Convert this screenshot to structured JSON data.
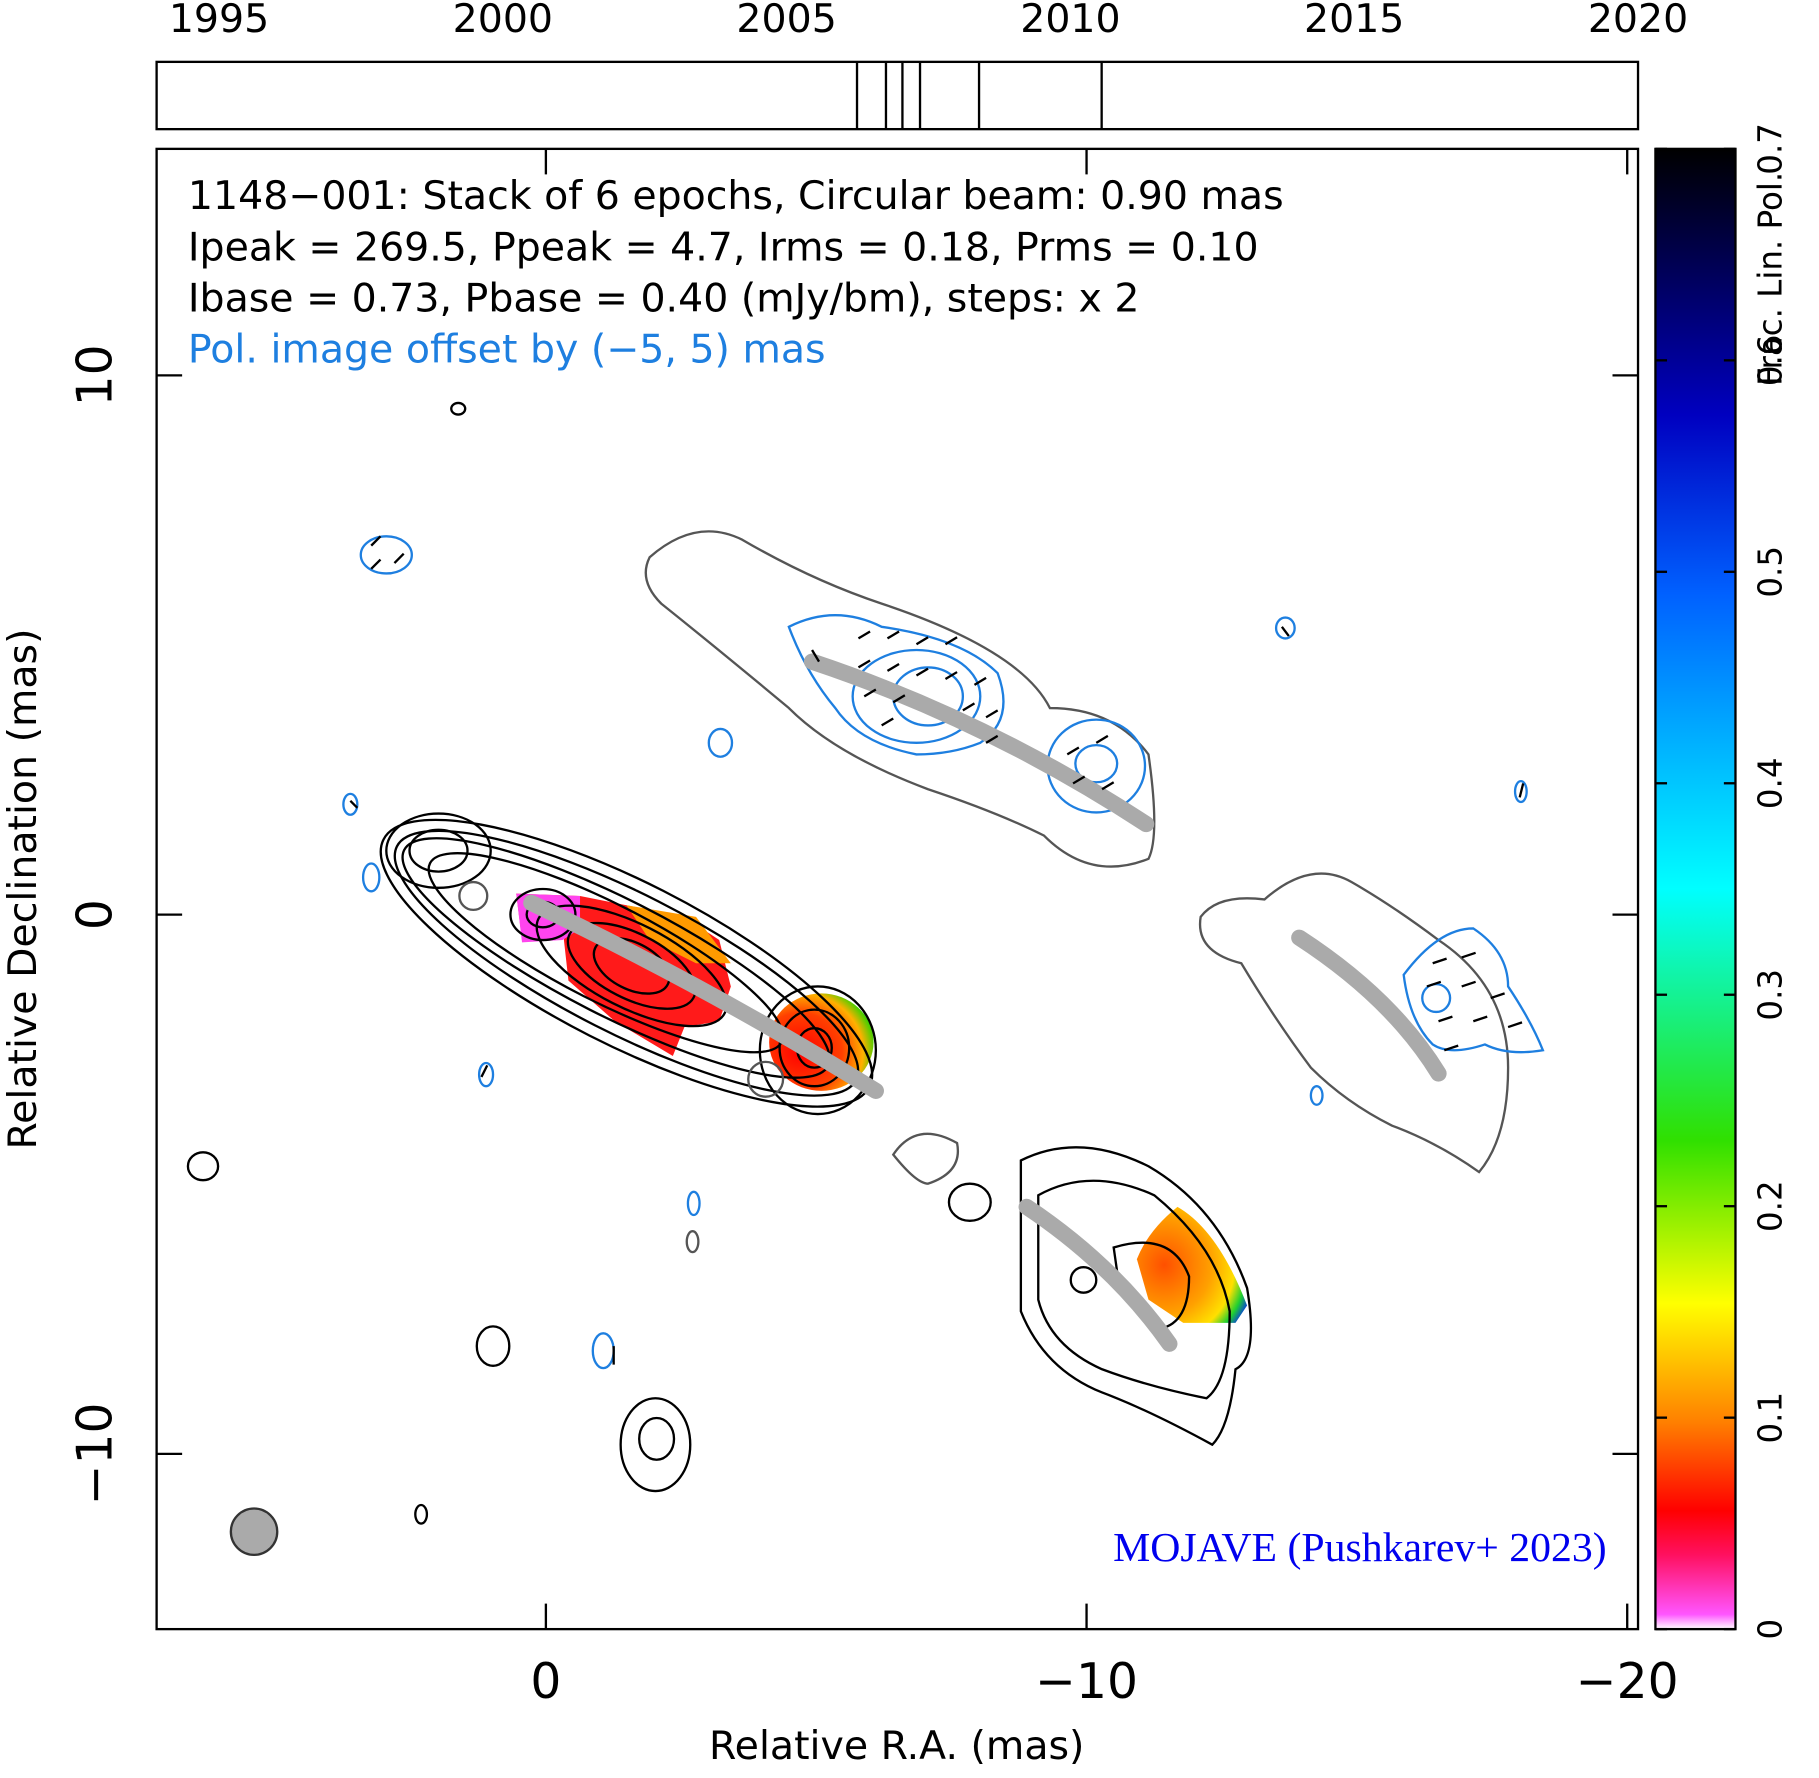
{
  "chart_data": {
    "type": "vlbi-map",
    "annotations": [
      "1148−001: Stack of 6 epochs, Circular beam: 0.90 mas",
      "Ipeak = 269.5, Ppeak = 4.7, Irms = 0.18, Prms = 0.10",
      "Ibase = 0.73, Pbase = 0.40 (mJy/bm), steps: x 2",
      "Pol. image offset by (−5, 5) mas"
    ],
    "credit": "MOJAVE (Pushkarev+ 2023)",
    "xlabel": "Relative R.A. (mas)",
    "ylabel": "Relative Declination (mas)",
    "xlim": [
      7.2,
      -20.2
    ],
    "ylim": [
      -13.25,
      14.2
    ],
    "xticks": [
      0,
      {
        "value": -10,
        "label": "−10"
      },
      {
        "value": -20,
        "label": "−20"
      }
    ],
    "yticks": [
      10,
      0,
      {
        "value": -10,
        "label": "−10"
      }
    ],
    "timeline": {
      "xlim": [
        1993.9,
        2020
      ],
      "xticks": [
        1995,
        2000,
        2005,
        2010,
        2015,
        2020
      ],
      "epochs": [
        2006.24,
        2006.75,
        2007.04,
        2007.35,
        2008.39,
        2010.55
      ]
    },
    "colorbar": {
      "label": "Frac. Lin. Pol.",
      "ylim": [
        0,
        0.7
      ],
      "yticks": [
        0,
        0.1,
        0.2,
        0.3,
        0.4,
        0.5,
        0.6,
        0.7
      ]
    }
  }
}
